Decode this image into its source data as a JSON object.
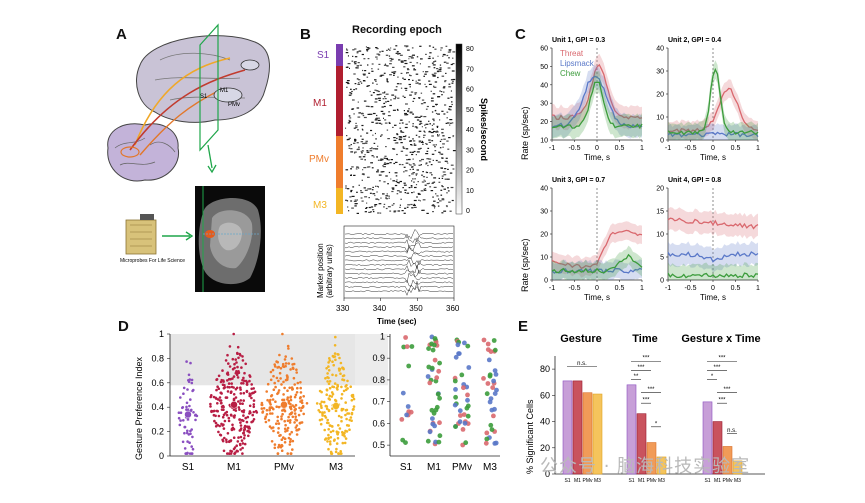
{
  "panels": {
    "a": "A",
    "b": "B",
    "c": "C",
    "d": "D",
    "e": "E"
  },
  "panel_a": {
    "microprobes_label": "Microprobes For Life Science",
    "brain_labels": [
      "S1",
      "M1",
      "PMv"
    ]
  },
  "panel_b": {
    "title": "Recording epoch",
    "regions": [
      {
        "name": "S1",
        "color": "#7a3db0"
      },
      {
        "name": "M1",
        "color": "#b01e2f"
      },
      {
        "name": "PMv",
        "color": "#ef7d2d"
      },
      {
        "name": "M3",
        "color": "#f3b624"
      }
    ],
    "colorbar_label": "Spikes/second",
    "colorbar_ticks": [
      "80",
      "70",
      "60",
      "50",
      "40",
      "30",
      "20",
      "10",
      "0"
    ],
    "marker_ylabel": "Marker position (arbitrary units)",
    "marker_ylabel_line1": "Marker position",
    "marker_ylabel_line2": "(arbitrary units)",
    "x_ticks": [
      "330",
      "340",
      "350",
      "360"
    ],
    "xlabel": "Time (sec)"
  },
  "panel_c": {
    "ylabel": "Rate (sp/sec)",
    "xlabel": "Time, s",
    "legend": [
      {
        "name": "Threat",
        "color": "#d9686e"
      },
      {
        "name": "Lipsmack",
        "color": "#5a78c8"
      },
      {
        "name": "Chew",
        "color": "#3c9c3c"
      }
    ],
    "units": [
      {
        "title": "Unit 1, GPI = 0.3",
        "y_ticks": [
          "10",
          "20",
          "30",
          "40",
          "50",
          "60"
        ]
      },
      {
        "title": "Unit 2, GPI = 0.4",
        "y_ticks": [
          "0",
          "10",
          "20",
          "30",
          "40"
        ]
      },
      {
        "title": "Unit 3, GPI = 0.7",
        "y_ticks": [
          "0",
          "10",
          "20",
          "30",
          "40"
        ]
      },
      {
        "title": "Unit 4, GPI = 0.8",
        "y_ticks": [
          "0",
          "5",
          "10",
          "15",
          "20"
        ]
      }
    ],
    "x_ticks": [
      "-1",
      "-0.5",
      "0",
      "0.5",
      "1"
    ]
  },
  "panel_d": {
    "ylabel": "Gesture Preference Index",
    "y_ticks": [
      "0",
      "0.2",
      "0.4",
      "0.6",
      "0.8",
      "1"
    ],
    "categories": [
      "S1",
      "M1",
      "PMv",
      "M3"
    ],
    "colors": [
      "#8a4fc0",
      "#b81e44",
      "#ef7d2d",
      "#f3b624"
    ],
    "medians": [
      0.34,
      0.42,
      0.42,
      0.41
    ],
    "zoom_y_ticks": [
      "0.5",
      "0.6",
      "0.7",
      "0.8",
      "0.9",
      "1"
    ],
    "zoom_categories": [
      "S1",
      "M1",
      "PMv",
      "M3"
    ]
  },
  "panel_e": {
    "ylabel": "% Significant Cells",
    "y_ticks": [
      "0",
      "20",
      "40",
      "60",
      "80"
    ],
    "groups": [
      {
        "title": "Gesture",
        "values": [
          71,
          71,
          62,
          61
        ]
      },
      {
        "title": "Time",
        "values": [
          68,
          46,
          24,
          13
        ]
      },
      {
        "title": "Gesture x Time",
        "values": [
          55,
          40,
          21,
          10
        ]
      }
    ],
    "bar_colors": [
      "#c79fd8",
      "#c9535e",
      "#f19b58",
      "#f5c45c"
    ],
    "bar_edges": [
      "#8a4fc0",
      "#9a1b2f",
      "#d9702a",
      "#e0a422"
    ],
    "x_labels": [
      "S1",
      "M1",
      "PMv",
      "M3"
    ],
    "sig_labels": {
      "ns": "n.s.",
      "s3": "***",
      "s2": "**",
      "s1": "*"
    }
  },
  "watermark": "公众号 · 脑海科技实验室"
}
